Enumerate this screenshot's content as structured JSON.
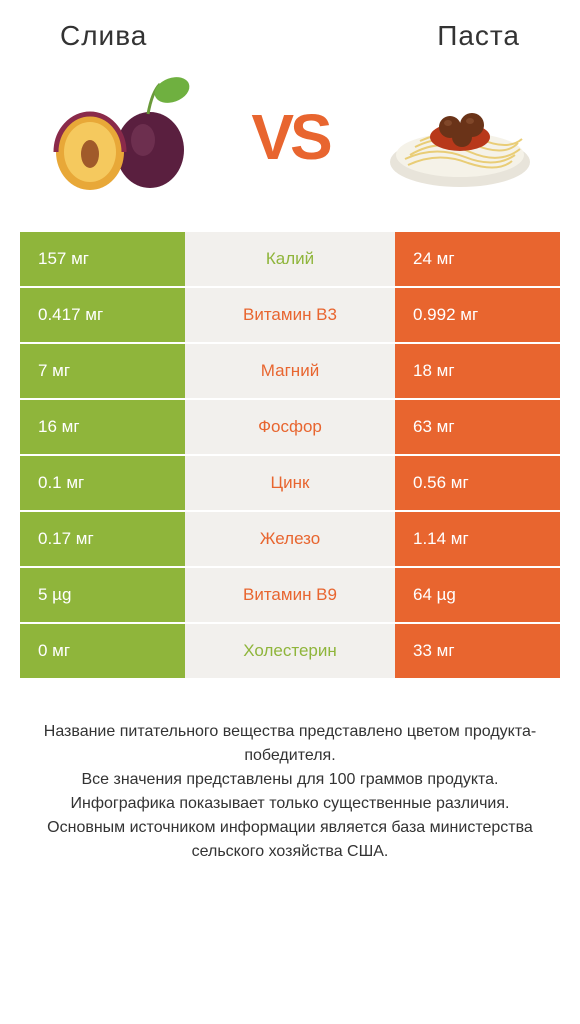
{
  "header": {
    "left_title": "Слива",
    "right_title": "Паста"
  },
  "vs": "VS",
  "colors": {
    "left": "#8fb53b",
    "right": "#e8652f",
    "mid_bg": "#f2f0ed",
    "vs_color": "#e8652f"
  },
  "rows": [
    {
      "left": "157 мг",
      "label": "Калий",
      "right": "24 мг",
      "winner": "left"
    },
    {
      "left": "0.417 мг",
      "label": "Витамин B3",
      "right": "0.992 мг",
      "winner": "right"
    },
    {
      "left": "7 мг",
      "label": "Магний",
      "right": "18 мг",
      "winner": "right"
    },
    {
      "left": "16 мг",
      "label": "Фосфор",
      "right": "63 мг",
      "winner": "right"
    },
    {
      "left": "0.1 мг",
      "label": "Цинк",
      "right": "0.56 мг",
      "winner": "right"
    },
    {
      "left": "0.17 мг",
      "label": "Железо",
      "right": "1.14 мг",
      "winner": "right"
    },
    {
      "left": "5 µg",
      "label": "Витамин B9",
      "right": "64 µg",
      "winner": "right"
    },
    {
      "left": "0 мг",
      "label": "Холестерин",
      "right": "33 мг",
      "winner": "left"
    }
  ],
  "footer": {
    "line1": "Название питательного вещества представлено цветом продукта-победителя.",
    "line2": "Все значения представлены для 100 граммов продукта.",
    "line3": "Инфографика показывает только существенные различия.",
    "line4": "Основным источником информации является база министерства сельского хозяйства США."
  }
}
